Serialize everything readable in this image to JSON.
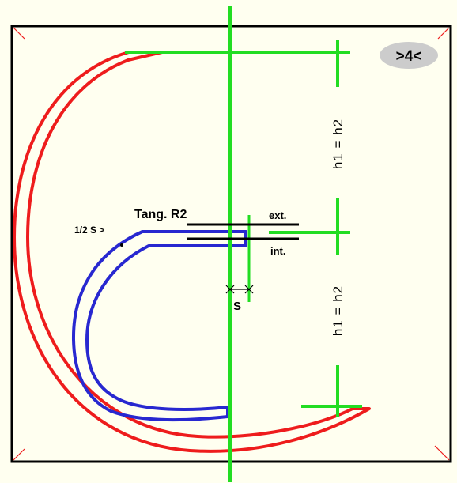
{
  "diagram": {
    "badge": ">4<",
    "labels": {
      "tang": "Tang. R2",
      "half_s": "1/2 S >",
      "ext": "ext.",
      "int": "int.",
      "s": "S",
      "h_top": "h1 = h2",
      "h_bottom": "h1 = h2"
    },
    "colors": {
      "background": "#fffff0",
      "frame": "#000000",
      "outer_curve": "#ee1c1c",
      "inner_curve": "#2828d0",
      "guides": "#22dd22",
      "corner_marks": "#ee1c1c",
      "badge_fill": "#cccccc"
    }
  }
}
